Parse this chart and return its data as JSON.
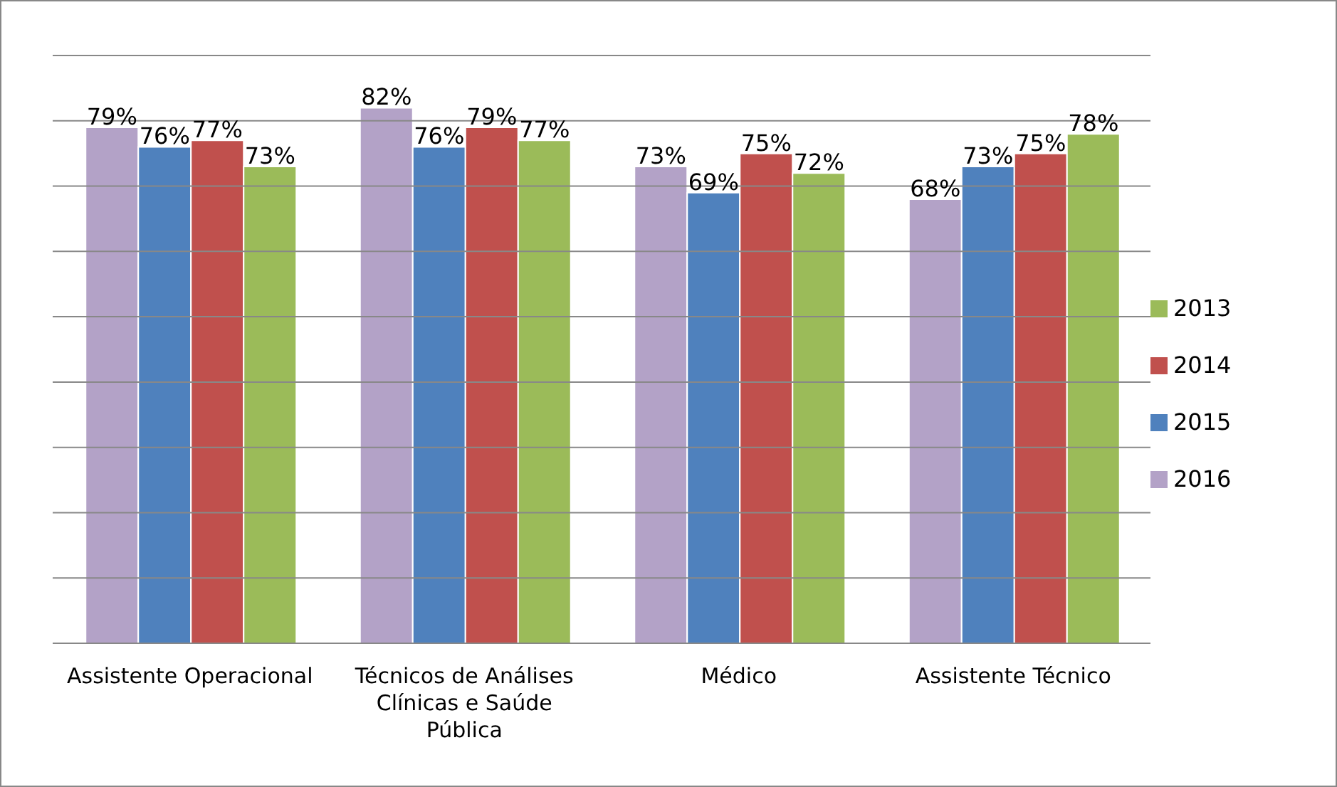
{
  "chart_data": {
    "type": "bar",
    "categories": [
      "Assistente Operacional",
      "Técnicos de Análises Clínicas e Saúde Pública",
      "Médico",
      "Assistente Técnico"
    ],
    "series": [
      {
        "name": "2016",
        "color": "#b3a2c7",
        "values": [
          79,
          82,
          73,
          68
        ],
        "value_labels": [
          "79%",
          "82%",
          "73%",
          "68%"
        ]
      },
      {
        "name": "2015",
        "color": "#4f81bd",
        "values": [
          76,
          76,
          69,
          73
        ],
        "value_labels": [
          "76%",
          "76%",
          "69%",
          "73%"
        ]
      },
      {
        "name": "2014",
        "color": "#c0504d",
        "values": [
          77,
          79,
          75,
          75
        ],
        "value_labels": [
          "77%",
          "79%",
          "75%",
          "75%"
        ]
      },
      {
        "name": "2013",
        "color": "#9bbb59",
        "values": [
          73,
          77,
          72,
          78
        ],
        "value_labels": [
          "73%",
          "77%",
          "72%",
          "78%"
        ]
      }
    ],
    "ylim": [
      0,
      90
    ],
    "yticks": [
      {
        "value": 0,
        "label": null
      },
      {
        "value": 10,
        "label": null
      },
      {
        "value": 20,
        "label": null
      },
      {
        "value": 30,
        "label": null
      },
      {
        "value": 40,
        "label": null
      },
      {
        "value": 50,
        "label": null
      },
      {
        "value": 60,
        "label": null
      },
      {
        "value": 70,
        "label": null
      },
      {
        "value": 80,
        "label": null
      },
      {
        "value": 90,
        "label": null
      }
    ],
    "grid": "y",
    "legend": "right",
    "tick_labels": "x"
  }
}
